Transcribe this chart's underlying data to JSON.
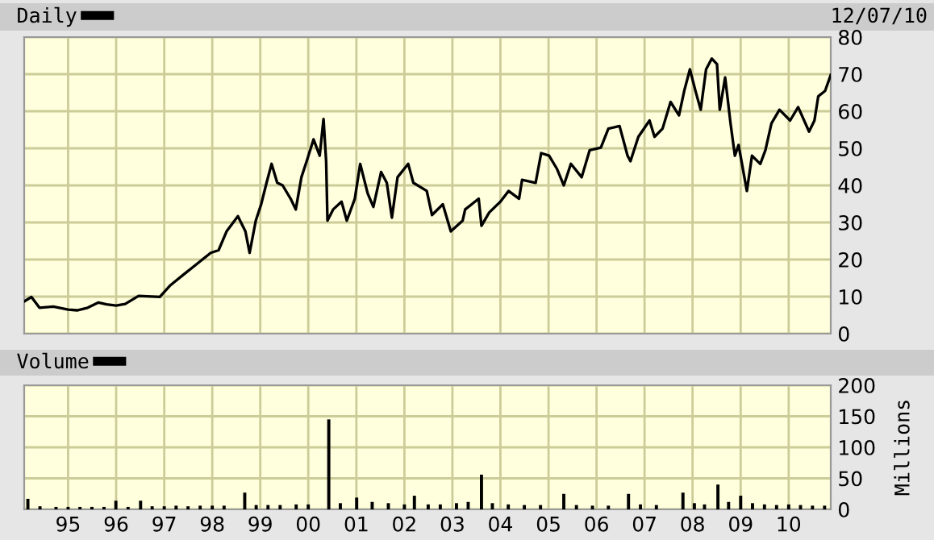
{
  "chart_data": [
    {
      "type": "line",
      "legend": "top left",
      "grid": true,
      "tick_labels": "y",
      "annotations": [
        "12/07/10"
      ],
      "xlim": [
        "1994-02-01",
        "2010-11-17"
      ],
      "ylim": [
        0,
        80
      ],
      "yticks": [
        0,
        10,
        20,
        30,
        40,
        50,
        60,
        70,
        80
      ],
      "xticks": [
        {
          "value": "1995-01-01",
          "label": null
        },
        {
          "value": "1996-01-01",
          "label": null
        },
        {
          "value": "1997-01-01",
          "label": null
        },
        {
          "value": "1998-01-01",
          "label": null
        },
        {
          "value": "1999-01-01",
          "label": null
        },
        {
          "value": "2000-01-01",
          "label": null
        },
        {
          "value": "2001-01-01",
          "label": null
        },
        {
          "value": "2002-01-01",
          "label": null
        },
        {
          "value": "2003-01-01",
          "label": null
        },
        {
          "value": "2004-01-01",
          "label": null
        },
        {
          "value": "2005-01-01",
          "label": null
        },
        {
          "value": "2006-01-01",
          "label": null
        },
        {
          "value": "2007-01-01",
          "label": null
        },
        {
          "value": "2008-01-01",
          "label": null
        },
        {
          "value": "2009-01-01",
          "label": null
        },
        {
          "value": "2010-01-01",
          "label": null
        }
      ],
      "series": [
        {
          "name": "Daily",
          "color": "#000000",
          "x": [
            "1994-02-01",
            "1994-03-28",
            "1994-05-28",
            "1994-09-10",
            "1995-01-01",
            "1995-03-10",
            "1995-05-30",
            "1995-08-20",
            "1995-10-20",
            "1996-01-01",
            "1996-03-10",
            "1996-06-20",
            "1996-11-28",
            "1997-02-18",
            "1997-05-30",
            "1997-09-10",
            "1997-12-20",
            "1998-02-18",
            "1998-04-20",
            "1998-07-15",
            "1998-09-10",
            "1998-10-12",
            "1998-11-28",
            "1999-01-08",
            "1999-02-18",
            "1999-03-28",
            "1999-05-10",
            "1999-06-20",
            "1999-08-20",
            "1999-09-28",
            "1999-11-10",
            "1999-12-20",
            "2000-02-10",
            "2000-03-28",
            "2000-04-26",
            "2000-05-16",
            "2000-05-26",
            "2000-07-08",
            "2000-09-10",
            "2000-10-20",
            "2000-12-20",
            "2001-01-30",
            "2001-03-28",
            "2001-05-10",
            "2001-07-08",
            "2001-08-20",
            "2001-09-28",
            "2001-11-10",
            "2002-01-30",
            "2002-03-10",
            "2002-06-20",
            "2002-07-30",
            "2002-10-20",
            "2002-12-20",
            "2003-03-20",
            "2003-04-08",
            "2003-07-20",
            "2003-08-10",
            "2003-10-08",
            "2004-01-01",
            "2004-03-03",
            "2004-05-22",
            "2004-06-14",
            "2004-09-25",
            "2004-11-06",
            "2005-01-05",
            "2005-03-07",
            "2005-04-27",
            "2005-06-20",
            "2005-09-10",
            "2005-11-10",
            "2006-02-03",
            "2006-04-01",
            "2006-06-25",
            "2006-08-25",
            "2006-09-16",
            "2006-11-15",
            "2007-02-08",
            "2007-03-18",
            "2007-05-18",
            "2007-07-18",
            "2007-09-20",
            "2007-10-30",
            "2007-12-12",
            "2008-01-23",
            "2008-03-03",
            "2008-04-13",
            "2008-05-26",
            "2008-07-05",
            "2008-07-26",
            "2008-09-05",
            "2008-10-16",
            "2008-11-18",
            "2008-12-16",
            "2009-02-17",
            "2009-03-28",
            "2009-05-30",
            "2009-07-08",
            "2009-08-23",
            "2009-10-23",
            "2010-01-12",
            "2010-03-14",
            "2010-06-05",
            "2010-07-16",
            "2010-08-14",
            "2010-10-05",
            "2010-11-17"
          ],
          "values": [
            8.7,
            9.9,
            7.0,
            7.3,
            6.5,
            6.3,
            7.0,
            8.4,
            7.9,
            7.6,
            8.0,
            10.2,
            9.9,
            13.1,
            16,
            18.9,
            21.8,
            22.5,
            27.6,
            31.7,
            27.6,
            21.8,
            30.5,
            34.9,
            40.7,
            45.8,
            40.7,
            40,
            36.4,
            33.5,
            42.2,
            46.5,
            52.4,
            48,
            57.9,
            46.5,
            30.5,
            33.5,
            35.6,
            30.5,
            36.4,
            45.8,
            37.8,
            34.2,
            43.6,
            40.7,
            31.3,
            42.2,
            45.8,
            40.7,
            38.5,
            32,
            34.9,
            27.6,
            30.5,
            33.5,
            36.4,
            29.1,
            32.7,
            35.6,
            38.5,
            36.4,
            41.5,
            40.7,
            48.7,
            48,
            44.4,
            40,
            45.8,
            42.2,
            49.5,
            50.2,
            55.3,
            56,
            48,
            46.5,
            53.1,
            57.5,
            53.1,
            55.3,
            62.5,
            58.9,
            65.5,
            71.3,
            65.5,
            60.4,
            71.3,
            74.2,
            72.7,
            60.4,
            69.1,
            56.7,
            48,
            50.9,
            38.5,
            48,
            45.8,
            49.5,
            56.7,
            60.4,
            57.5,
            61.1,
            54.5,
            57.5,
            64,
            65.5,
            69.8
          ]
        }
      ]
    },
    {
      "type": "bar",
      "legend": "top left",
      "grid": true,
      "ylabel": "Millions",
      "xlim": [
        "1994-02-01",
        "2010-11-17"
      ],
      "ylim": [
        0,
        200
      ],
      "yticks": [
        0,
        50,
        100,
        150,
        200
      ],
      "xticks": [
        {
          "value": "1995-01-01",
          "label": "95"
        },
        {
          "value": "1996-01-01",
          "label": "96"
        },
        {
          "value": "1997-01-01",
          "label": "97"
        },
        {
          "value": "1998-01-01",
          "label": "98"
        },
        {
          "value": "1999-01-01",
          "label": "99"
        },
        {
          "value": "2000-01-01",
          "label": "00"
        },
        {
          "value": "2001-01-01",
          "label": "01"
        },
        {
          "value": "2002-01-01",
          "label": "02"
        },
        {
          "value": "2003-01-01",
          "label": "03"
        },
        {
          "value": "2004-01-01",
          "label": "04"
        },
        {
          "value": "2005-01-01",
          "label": "05"
        },
        {
          "value": "2006-01-01",
          "label": "06"
        },
        {
          "value": "2007-01-01",
          "label": "07"
        },
        {
          "value": "2008-01-01",
          "label": "08"
        },
        {
          "value": "2009-01-01",
          "label": "09"
        },
        {
          "value": "2010-01-01",
          "label": "10"
        }
      ],
      "series": [
        {
          "name": "Volume",
          "color": "#000000",
          "x": [
            "1994-03-01",
            "1994-06-01",
            "1994-10-01",
            "1995-01-01",
            "1995-04-01",
            "1995-07-01",
            "1995-10-01",
            "1995-12-30",
            "1996-04-01",
            "1996-07-05",
            "1996-10-01",
            "1997-01-01",
            "1997-04-01",
            "1997-07-01",
            "1997-10-01",
            "1998-01-01",
            "1998-04-01",
            "1998-09-05",
            "1998-12-01",
            "1999-03-01",
            "1999-06-01",
            "1999-10-01",
            "2000-01-01",
            "2000-06-05",
            "2000-09-01",
            "2001-01-03",
            "2001-05-01",
            "2001-09-01",
            "2002-01-01",
            "2002-03-18",
            "2002-07-01",
            "2002-10-01",
            "2003-02-01",
            "2003-05-01",
            "2003-08-10",
            "2003-11-01",
            "2004-03-01",
            "2004-07-01",
            "2004-11-01",
            "2005-04-27",
            "2005-08-01",
            "2005-12-01",
            "2006-04-01",
            "2006-09-01",
            "2006-12-01",
            "2007-04-01",
            "2007-10-20",
            "2008-01-15",
            "2008-04-01",
            "2008-07-12",
            "2008-10-01",
            "2009-01-01",
            "2009-04-01",
            "2009-07-01",
            "2009-10-01",
            "2010-01-01",
            "2010-04-01",
            "2010-07-01",
            "2010-10-01"
          ],
          "values": [
            17,
            5,
            4,
            4,
            4,
            4,
            4,
            14,
            4,
            14,
            5,
            5,
            6,
            5,
            6,
            6,
            6,
            27,
            7,
            7,
            7,
            8,
            8,
            145,
            10,
            19,
            12,
            10,
            8,
            22,
            8,
            8,
            10,
            12,
            56,
            10,
            8,
            7,
            7,
            25,
            7,
            6,
            6,
            25,
            8,
            7,
            27,
            10,
            8,
            40,
            12,
            22,
            10,
            8,
            7,
            8,
            7,
            6,
            6
          ]
        }
      ]
    }
  ]
}
